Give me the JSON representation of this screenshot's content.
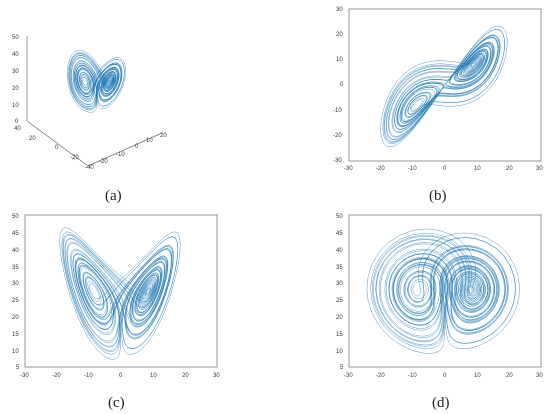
{
  "figure": {
    "line_color": "#1f77b4",
    "panels": [
      {
        "id": "a",
        "caption": "(a)",
        "type": "line3d",
        "projection": "x-y-z isometric",
        "z_ticks": [
          "0",
          "10",
          "20",
          "30",
          "40",
          "50"
        ],
        "x_ticks": [
          "40",
          "20",
          "0",
          "-20",
          "-40"
        ],
        "y_ticks": [
          "-20",
          "-10",
          "0",
          "10",
          "20"
        ]
      },
      {
        "id": "b",
        "caption": "(b)",
        "type": "line",
        "projection": "x-y",
        "x_ticks": [
          "-30",
          "-20",
          "-10",
          "0",
          "10",
          "20",
          "30"
        ],
        "y_ticks": [
          "30",
          "20",
          "10",
          "0",
          "-10",
          "-20",
          "-30"
        ],
        "xlim": [
          -30,
          30
        ],
        "ylim": [
          -30,
          30
        ]
      },
      {
        "id": "c",
        "caption": "(c)",
        "type": "line",
        "projection": "x-z",
        "x_ticks": [
          "-30",
          "-20",
          "-10",
          "0",
          "10",
          "20",
          "30"
        ],
        "y_ticks": [
          "50",
          "45",
          "40",
          "35",
          "30",
          "25",
          "20",
          "15",
          "10",
          "5"
        ],
        "xlim": [
          -30,
          30
        ],
        "ylim": [
          5,
          50
        ]
      },
      {
        "id": "d",
        "caption": "(d)",
        "type": "line",
        "projection": "y-z",
        "x_ticks": [
          "-30",
          "-20",
          "-10",
          "0",
          "10",
          "20",
          "30"
        ],
        "y_ticks": [
          "50",
          "45",
          "40",
          "35",
          "30",
          "25",
          "20",
          "15",
          "10",
          "5"
        ],
        "xlim": [
          -30,
          30
        ],
        "ylim": [
          5,
          50
        ]
      }
    ]
  }
}
